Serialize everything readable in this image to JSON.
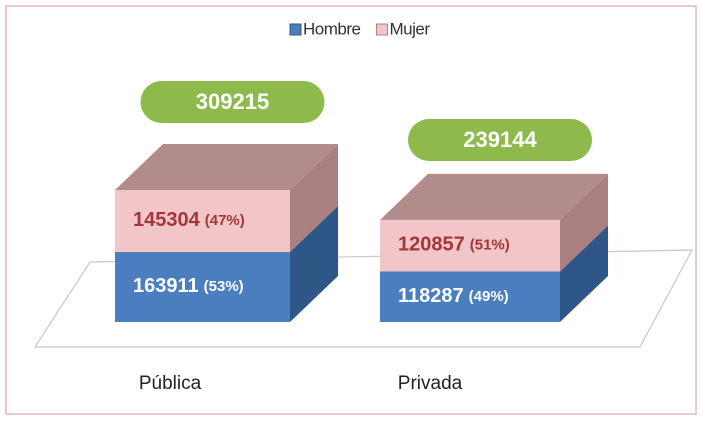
{
  "chart_data": {
    "type": "bar3d_stacked",
    "categories": [
      "Pública",
      "Privada"
    ],
    "series": [
      {
        "name": "Hombre",
        "color": "#4a7ebf",
        "side": "#2e5787",
        "text_color": "#ffffff",
        "values": [
          163911,
          118287
        ],
        "value_labels": [
          "(53%)",
          "(49%)"
        ]
      },
      {
        "name": "Mujer",
        "color": "#f2c5c9",
        "side": "#a9807f",
        "top": "#b18c8b",
        "text_color": "#a3363a",
        "values": [
          145304,
          120857
        ],
        "value_labels": [
          "(47%)",
          "(51%)"
        ]
      }
    ],
    "totals": [
      309215,
      239144
    ],
    "total_color": "#8dba4a",
    "legend": "top"
  }
}
